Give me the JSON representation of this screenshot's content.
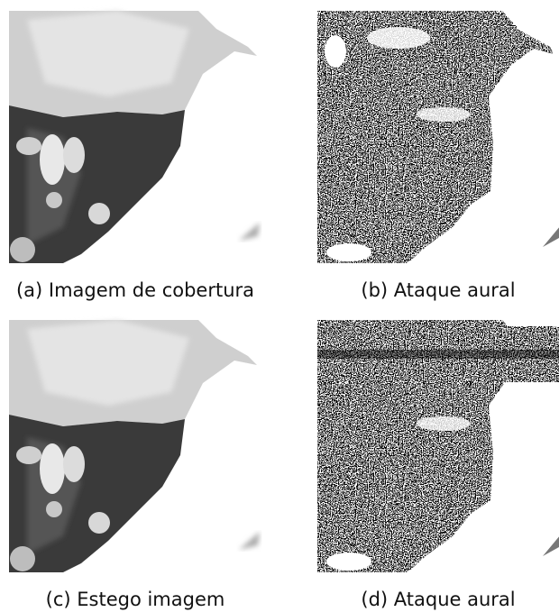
{
  "figure": {
    "panels": [
      {
        "caption": "(a) Imagem de cobertura"
      },
      {
        "caption": "(b) Ataque aural"
      },
      {
        "caption": "(c) Estego imagem"
      },
      {
        "caption": "(d) Ataque aural"
      }
    ]
  }
}
